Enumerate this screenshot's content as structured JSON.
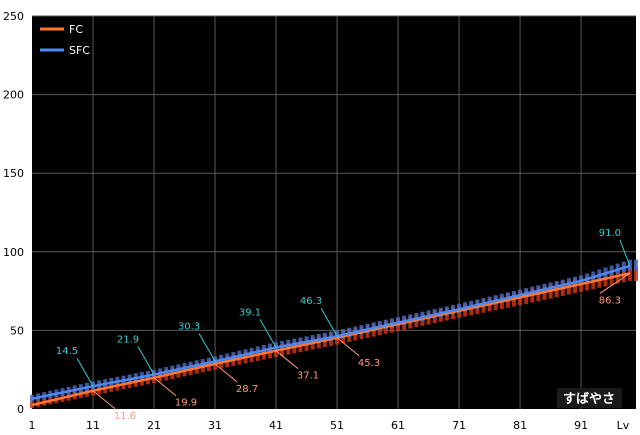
{
  "chart_data": {
    "type": "line",
    "title": "",
    "xlabel": "Lv",
    "ylabel": "",
    "xlim": [
      1,
      100
    ],
    "ylim": [
      0,
      250
    ],
    "x_ticks": [
      1,
      11,
      21,
      31,
      41,
      51,
      61,
      71,
      81,
      91
    ],
    "y_ticks": [
      0,
      50,
      100,
      150,
      200,
      250
    ],
    "grid": true,
    "legend_position": "top-left",
    "background": "#000000",
    "series": [
      {
        "name": "FC",
        "color": "#ff7733",
        "band_color": "#cc3311",
        "x": [
          1,
          11,
          21,
          31,
          41,
          51,
          61,
          71,
          81,
          91,
          99
        ],
        "values": [
          2.5,
          11.6,
          19.9,
          28.7,
          37.1,
          45.3,
          54.0,
          62.5,
          71.0,
          79.5,
          86.3
        ],
        "band_min": [
          0.5,
          8.5,
          16.5,
          25.0,
          33.0,
          41.0,
          49.5,
          58.0,
          66.0,
          74.5,
          81.5
        ],
        "band_max": [
          4.5,
          14.0,
          23.0,
          32.0,
          40.5,
          49.0,
          57.5,
          66.0,
          75.0,
          83.5,
          90.0
        ]
      },
      {
        "name": "SFC",
        "color": "#4d88ee",
        "band_color": "#4466bb",
        "x": [
          1,
          11,
          21,
          31,
          41,
          51,
          61,
          71,
          81,
          91,
          99
        ],
        "values": [
          6.5,
          14.5,
          21.9,
          30.3,
          39.1,
          46.3,
          55.0,
          63.5,
          72.5,
          81.5,
          91.0
        ],
        "band_min": [
          4.5,
          12.0,
          19.5,
          28.0,
          36.5,
          44.0,
          52.5,
          61.0,
          70.0,
          79.0,
          88.0
        ],
        "band_max": [
          9.0,
          17.5,
          25.0,
          33.5,
          42.5,
          50.0,
          58.5,
          67.0,
          76.0,
          85.0,
          95.0
        ]
      }
    ],
    "annotations": [
      {
        "series": "SFC",
        "text": "14.5",
        "x": 11,
        "y": 14.5
      },
      {
        "series": "SFC",
        "text": "21.9",
        "x": 21,
        "y": 21.9
      },
      {
        "series": "SFC",
        "text": "30.3",
        "x": 31,
        "y": 30.3
      },
      {
        "series": "SFC",
        "text": "39.1",
        "x": 41,
        "y": 39.1
      },
      {
        "series": "SFC",
        "text": "46.3",
        "x": 51,
        "y": 46.3
      },
      {
        "series": "SFC",
        "text": "91.0",
        "x": 99,
        "y": 91.0
      },
      {
        "series": "FC",
        "text": "11.6",
        "x": 11,
        "y": 11.6
      },
      {
        "series": "FC",
        "text": "19.9",
        "x": 21,
        "y": 19.9
      },
      {
        "series": "FC",
        "text": "28.7",
        "x": 31,
        "y": 28.7
      },
      {
        "series": "FC",
        "text": "37.1",
        "x": 41,
        "y": 37.1
      },
      {
        "series": "FC",
        "text": "45.3",
        "x": 51,
        "y": 45.3
      },
      {
        "series": "FC",
        "text": "86.3",
        "x": 99,
        "y": 86.3
      }
    ],
    "label_colors": {
      "SFC": "#33cccc",
      "FC": "#ff9977"
    },
    "badge": "すばやさ"
  }
}
